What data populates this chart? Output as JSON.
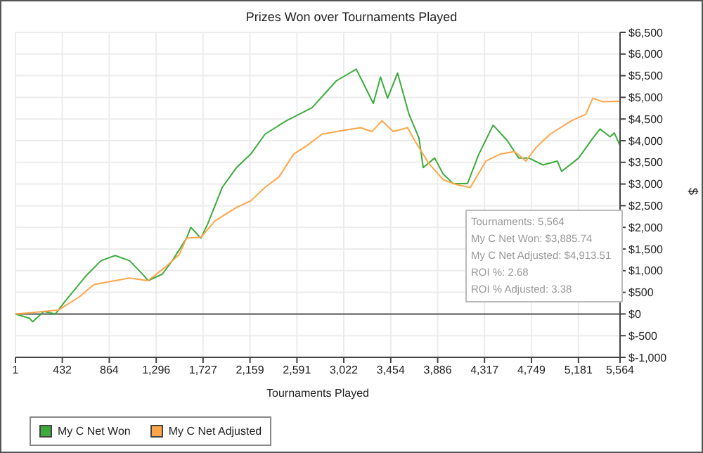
{
  "chart_data": {
    "type": "line",
    "title": "Prizes Won over Tournaments Played",
    "xlabel": "Tournaments Played",
    "ylabel": "$",
    "xlim": [
      1,
      5564
    ],
    "xticks": [
      {
        "value": 1,
        "label": "1"
      },
      {
        "value": 432,
        "label": "432"
      },
      {
        "value": 864,
        "label": "864"
      },
      {
        "value": 1296,
        "label": "1,296"
      },
      {
        "value": 1727,
        "label": "1,727"
      },
      {
        "value": 2159,
        "label": "2,159"
      },
      {
        "value": 2591,
        "label": "2,591"
      },
      {
        "value": 3022,
        "label": "3,022"
      },
      {
        "value": 3454,
        "label": "3,454"
      },
      {
        "value": 3886,
        "label": "3,886"
      },
      {
        "value": 4317,
        "label": "4,317"
      },
      {
        "value": 4749,
        "label": "4,749"
      },
      {
        "value": 5181,
        "label": "5,181"
      },
      {
        "value": 5564,
        "label": "5,564"
      }
    ],
    "ylim": [
      -1000,
      6500
    ],
    "yticks": [
      {
        "value": -1000,
        "label": "$-1,000"
      },
      {
        "value": -500,
        "label": "$-500"
      },
      {
        "value": 0,
        "label": "$0"
      },
      {
        "value": 500,
        "label": "$500"
      },
      {
        "value": 1000,
        "label": "$1,000"
      },
      {
        "value": 1500,
        "label": "$1,500"
      },
      {
        "value": 2000,
        "label": "$2,000"
      },
      {
        "value": 2500,
        "label": "$2,500"
      },
      {
        "value": 3000,
        "label": "$3,000"
      },
      {
        "value": 3500,
        "label": "$3,500"
      },
      {
        "value": 4000,
        "label": "$4,000"
      },
      {
        "value": 4500,
        "label": "$4,500"
      },
      {
        "value": 5000,
        "label": "$5,000"
      },
      {
        "value": 5500,
        "label": "$5,500"
      },
      {
        "value": 6000,
        "label": "$6,000"
      },
      {
        "value": 6500,
        "label": "$6,500"
      }
    ],
    "grid": true,
    "legend": "bottom",
    "marker": "none",
    "ref_lines": [
      {
        "axis": "y",
        "value": 0,
        "color": "#555555"
      }
    ],
    "series": [
      {
        "name": "My C Net Won",
        "color": "#3cab3c",
        "x": [
          1,
          132,
          158,
          263,
          368,
          460,
          657,
          788,
          919,
          1051,
          1182,
          1221,
          1352,
          1444,
          1575,
          1615,
          1707,
          1772,
          1903,
          2035,
          2166,
          2297,
          2494,
          2730,
          2953,
          3137,
          3294,
          3360,
          3425,
          3517,
          3622,
          3714,
          3753,
          3858,
          3937,
          4029,
          4160,
          4265,
          4396,
          4527,
          4632,
          4724,
          4855,
          4987,
          5026,
          5183,
          5314,
          5380,
          5472,
          5511,
          5564
        ],
        "values": [
          0,
          -100,
          -180,
          60,
          0,
          300,
          900,
          1230,
          1350,
          1230,
          890,
          770,
          920,
          1230,
          1750,
          2000,
          1750,
          2090,
          2920,
          3380,
          3690,
          4150,
          4460,
          4760,
          5380,
          5650,
          4860,
          5470,
          4980,
          5560,
          4610,
          4060,
          3380,
          3600,
          3230,
          3010,
          3010,
          3690,
          4360,
          4000,
          3600,
          3600,
          3440,
          3530,
          3290,
          3600,
          4060,
          4270,
          4090,
          4180,
          3890
        ]
      },
      {
        "name": "My C Net Adjusted",
        "color": "#ffa54a",
        "x": [
          1,
          263,
          395,
          591,
          723,
          919,
          1051,
          1221,
          1379,
          1510,
          1575,
          1707,
          1838,
          2035,
          2166,
          2297,
          2428,
          2560,
          2691,
          2822,
          3019,
          3176,
          3281,
          3373,
          3478,
          3609,
          3675,
          3806,
          3937,
          4068,
          4186,
          4330,
          4462,
          4593,
          4698,
          4790,
          4921,
          5118,
          5249,
          5314,
          5406,
          5564
        ],
        "values": [
          0,
          60,
          90,
          400,
          680,
          770,
          830,
          770,
          1080,
          1380,
          1750,
          1770,
          2150,
          2460,
          2610,
          2920,
          3170,
          3690,
          3900,
          4150,
          4240,
          4300,
          4210,
          4460,
          4210,
          4300,
          4000,
          3470,
          3100,
          2980,
          2920,
          3530,
          3690,
          3750,
          3530,
          3840,
          4150,
          4460,
          4610,
          4980,
          4900,
          4910
        ]
      }
    ],
    "annotations": [
      "Tournaments: 5,564",
      "My C Net Won: $3,885.74",
      "My C Net Adjusted: $4,913.51",
      "ROI %: 2.68",
      "ROI % Adjusted: 3.38"
    ]
  }
}
